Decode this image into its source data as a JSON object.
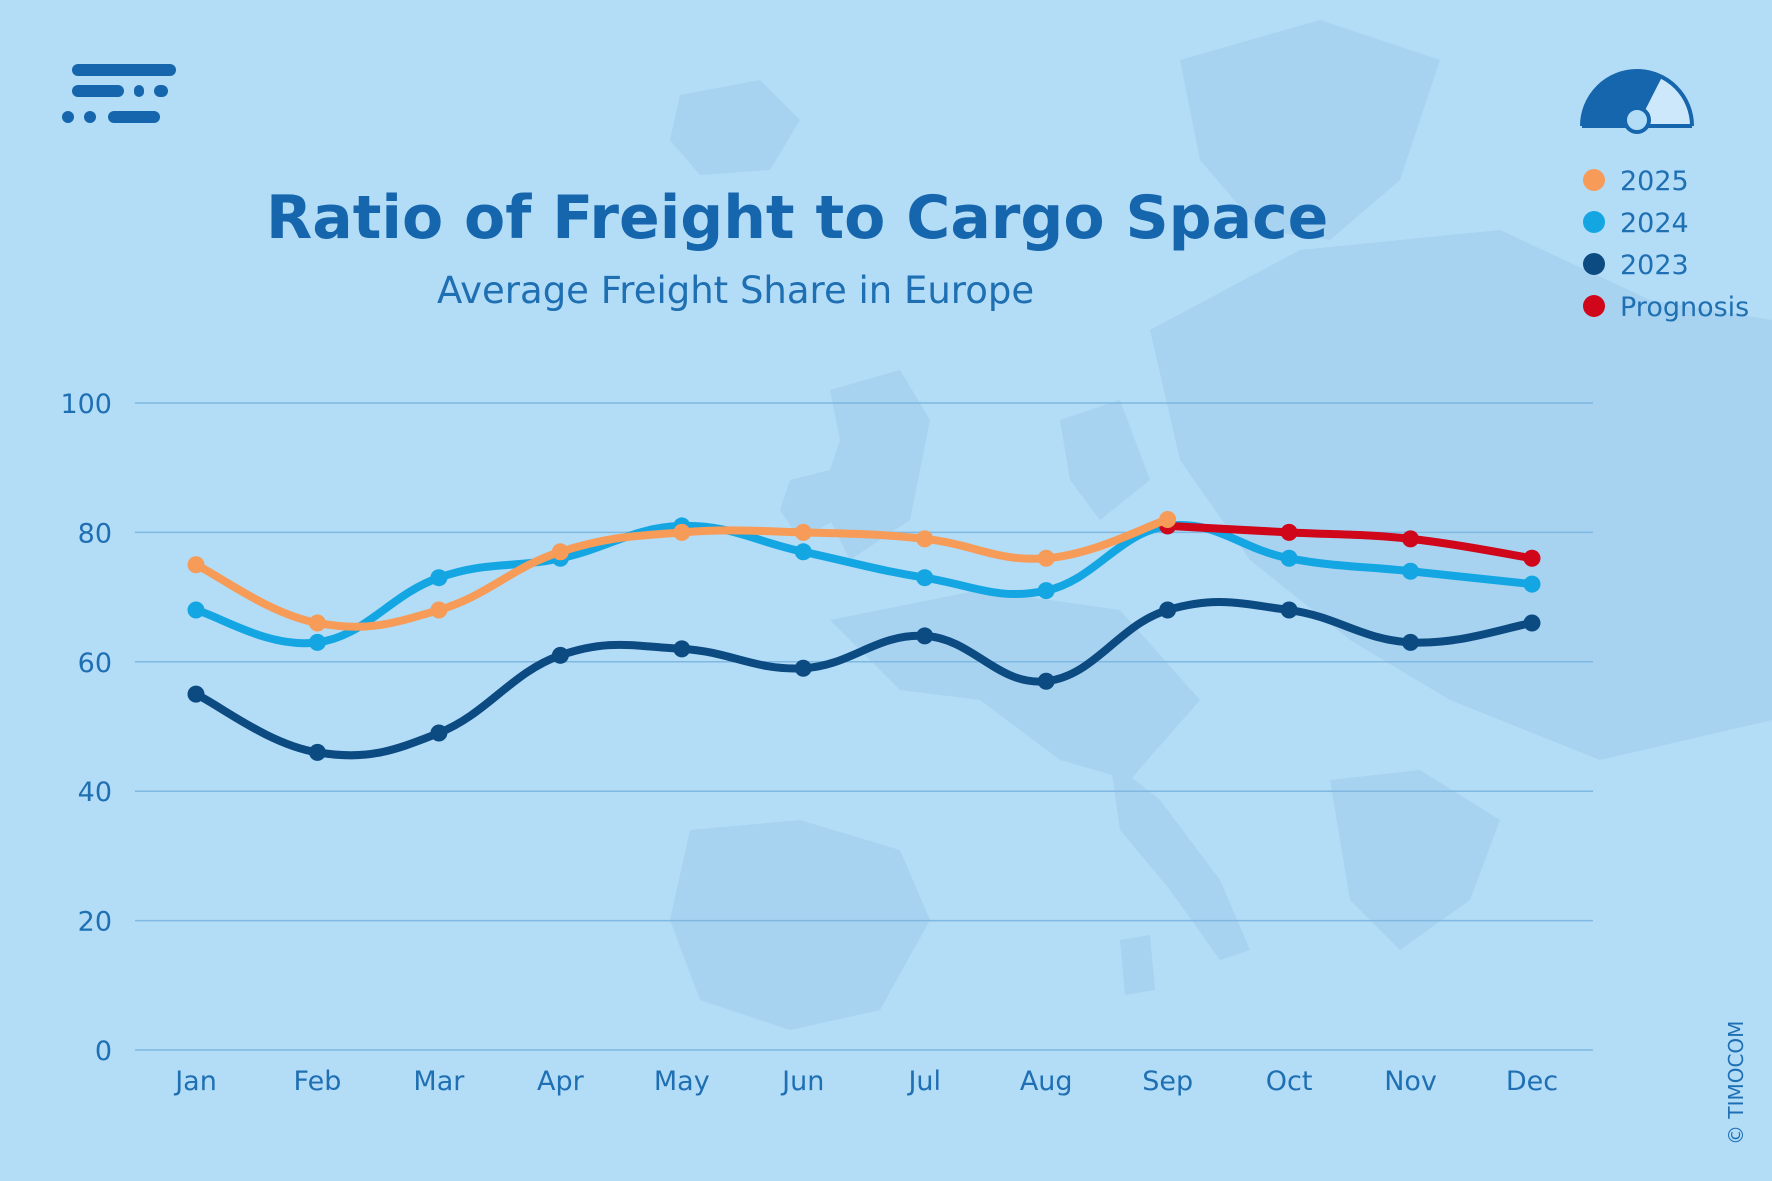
{
  "chart_data": {
    "type": "line",
    "title": "Ratio of Freight to Cargo Space",
    "subtitle": "Average Freight Share in Europe",
    "categories": [
      "Jan",
      "Feb",
      "Mar",
      "Apr",
      "May",
      "Jun",
      "Jul",
      "Aug",
      "Sep",
      "Oct",
      "Nov",
      "Dec"
    ],
    "yticks": [
      "0",
      "20",
      "40",
      "60",
      "80",
      "100"
    ],
    "ylim": [
      0,
      100
    ],
    "grid": true,
    "legend_position": "top-right",
    "series": [
      {
        "name": "2023",
        "color": "#0c4a82",
        "values": [
          55,
          46,
          49,
          61,
          62,
          59,
          64,
          57,
          68,
          68,
          63,
          66
        ]
      },
      {
        "name": "2024",
        "color": "#14a6e3",
        "values": [
          68,
          63,
          73,
          76,
          81,
          77,
          73,
          71,
          81,
          76,
          74,
          72
        ]
      },
      {
        "name": "2025",
        "color": "#f79b58",
        "values": [
          75,
          66,
          68,
          77,
          80,
          80,
          79,
          76,
          82,
          null,
          null,
          null
        ]
      },
      {
        "name": "Prognosis",
        "color": "#d0061a",
        "values": [
          null,
          null,
          null,
          null,
          null,
          null,
          null,
          null,
          81,
          80,
          79,
          76
        ]
      }
    ],
    "legend": [
      {
        "label": "2025",
        "color": "#f79b58"
      },
      {
        "label": "2024",
        "color": "#14a6e3"
      },
      {
        "label": "2023",
        "color": "#0c4a82"
      },
      {
        "label": "Prognosis",
        "color": "#d0061a"
      }
    ],
    "credit": "© TIMOCOM"
  }
}
